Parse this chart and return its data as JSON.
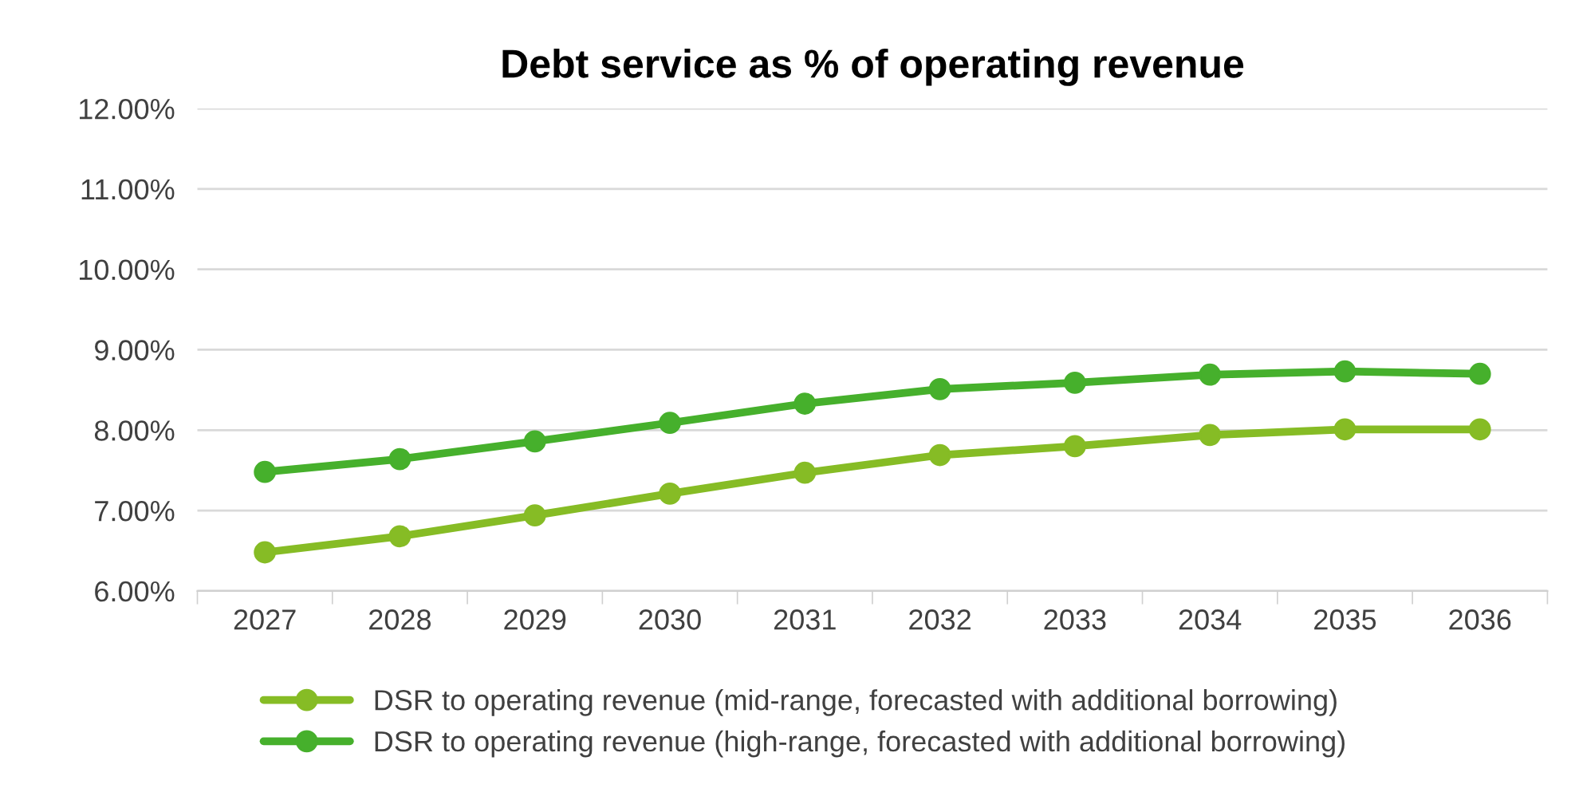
{
  "chart_data": {
    "type": "line",
    "title": "Debt service as % of operating revenue",
    "categories": [
      "2027",
      "2028",
      "2029",
      "2030",
      "2031",
      "2032",
      "2033",
      "2034",
      "2035",
      "2036"
    ],
    "series": [
      {
        "name": "DSR to operating revenue (mid-range, forecasted with additional borrowing)",
        "color": "#86bc25",
        "values": [
          6.48,
          6.68,
          6.94,
          7.21,
          7.47,
          7.69,
          7.8,
          7.94,
          8.01,
          8.01
        ]
      },
      {
        "name": "DSR to operating revenue (high-range, forecasted with additional borrowing)",
        "color": "#46b02c",
        "values": [
          7.48,
          7.64,
          7.86,
          8.09,
          8.33,
          8.51,
          8.59,
          8.69,
          8.73,
          8.7
        ]
      }
    ],
    "ylim": [
      6,
      12
    ],
    "yticks": [
      {
        "value": 6,
        "label": "6.00%"
      },
      {
        "value": 7,
        "label": "7.00%"
      },
      {
        "value": 8,
        "label": "8.00%"
      },
      {
        "value": 9,
        "label": "9.00%"
      },
      {
        "value": 10,
        "label": "10.00%"
      },
      {
        "value": 11,
        "label": "11.00%"
      },
      {
        "value": 12,
        "label": "12.00%"
      }
    ],
    "grid": "y",
    "legend": "bottom",
    "marker": "circle",
    "line_style": "solid"
  }
}
